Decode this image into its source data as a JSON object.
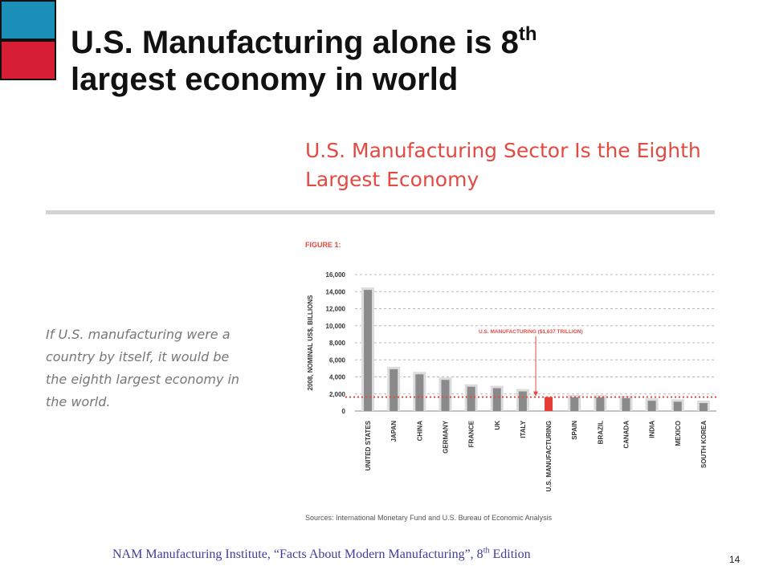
{
  "slide": {
    "title_part1": "U.S. Manufacturing alone is 8",
    "title_sup": "th",
    "title_part2": "largest economy in world",
    "quote": "If U.S. manufacturing were a country by itself, it would be the eighth largest economy in the world.",
    "footer_part1": "NAM Manufacturing Institute, “Facts About Modern Manufacturing”, 8",
    "footer_sup": "th",
    "footer_part2": " Edition",
    "page_number": "14"
  },
  "colors": {
    "accent_blue": "#1a8fb8",
    "accent_red": "#d61f35",
    "chart_red": "#e24a42",
    "bar_gray": "#8a8a8a",
    "bar_highlight": "#e53c36"
  },
  "chart_data": {
    "type": "bar",
    "title": "U.S. Manufacturing Sector Is the Eighth Largest Economy",
    "figure_label": "FIGURE 1:",
    "ylabel": "2008, NOMINAL US$, BILLIONS",
    "xlabel": "",
    "ylim": [
      0,
      16000
    ],
    "yticks": [
      0,
      2000,
      4000,
      6000,
      8000,
      10000,
      12000,
      14000,
      16000
    ],
    "ytick_labels": [
      "0",
      "2,000",
      "4,000",
      "6,000",
      "8,000",
      "10,000",
      "12,000",
      "14,000",
      "16,000"
    ],
    "grid": true,
    "categories": [
      "UNITED STATES",
      "JAPAN",
      "CHINA",
      "GERMANY",
      "FRANCE",
      "UK",
      "ITALY",
      "U.S. MANUFACTURING",
      "SPAIN",
      "BRAZIL",
      "CANADA",
      "INDIA",
      "MEXICO",
      "SOUTH KOREA"
    ],
    "values": [
      14200,
      4900,
      4300,
      3650,
      2850,
      2680,
      2300,
      1637,
      1600,
      1580,
      1500,
      1200,
      1090,
      930
    ],
    "highlight_index": 7,
    "reference_line": 1637,
    "annotation": "U.S. MANUFACTURING ($1,637 TRILLION)",
    "source": "Sources: International Monetary Fund and U.S. Bureau of Economic Analysis"
  }
}
